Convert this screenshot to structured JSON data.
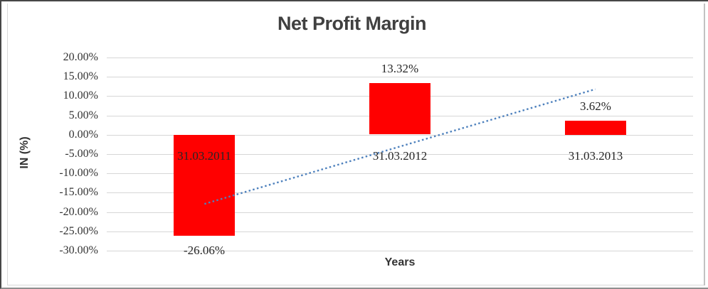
{
  "chart_data": {
    "type": "bar",
    "title": "Net Profit Margin",
    "xlabel": "Years",
    "ylabel": "IN (%)",
    "categories": [
      "31.03.2011",
      "31.03.2012",
      "31.03.2013"
    ],
    "values": [
      -26.06,
      13.32,
      3.62
    ],
    "data_labels": [
      "-26.06%",
      "13.32%",
      "3.62%"
    ],
    "ylim": [
      -30,
      20
    ],
    "ytick_step": 5,
    "ytick_labels": [
      "20.00%",
      "15.00%",
      "10.00%",
      "5.00%",
      "0.00%",
      "-5.00%",
      "-10.00%",
      "-15.00%",
      "-20.00%",
      "-25.00%",
      "-30.00%"
    ],
    "grid": true,
    "legend": false,
    "bar_color": "#FF0000",
    "gridline_color": "#D6D6D6",
    "text_color": "#262626",
    "title_color": "#404040",
    "trendline": {
      "type": "linear",
      "style": "dotted",
      "color": "#4E81BD",
      "start_value": -17.9,
      "end_value": 11.8
    }
  }
}
